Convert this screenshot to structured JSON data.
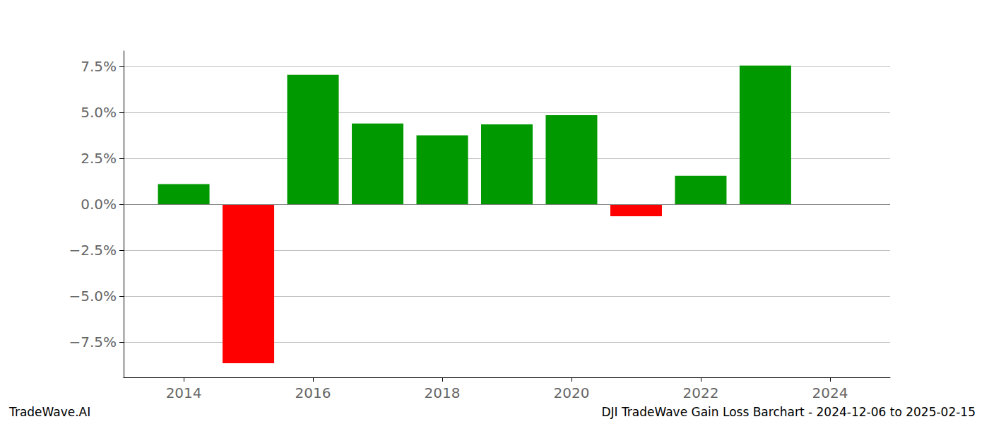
{
  "chart_data": {
    "type": "bar",
    "title": "DJI TradeWave Gain Loss Barchart - 2024-12-06 to 2025-02-15",
    "source": "TradeWave.AI",
    "x": [
      2014,
      2015,
      2016,
      2017,
      2018,
      2019,
      2020,
      2021,
      2022,
      2023
    ],
    "values": [
      1.1,
      -8.65,
      7.05,
      4.4,
      3.75,
      4.35,
      4.85,
      -0.65,
      1.55,
      7.55
    ],
    "colors": [
      "#009900",
      "#ff0000",
      "#009900",
      "#009900",
      "#009900",
      "#009900",
      "#009900",
      "#ff0000",
      "#009900",
      "#009900"
    ],
    "xlim": [
      2013.07,
      2024.93
    ],
    "xticks": [
      2014,
      2016,
      2018,
      2020,
      2022,
      2024
    ],
    "ylim": [
      -9.42,
      8.35
    ],
    "yticks": [
      {
        "value": -7.5,
        "label": "−7.5%"
      },
      {
        "value": -5,
        "label": "−5.0%"
      },
      {
        "value": -2.5,
        "label": "−2.5%"
      },
      {
        "value": 0,
        "label": "0.0%"
      },
      {
        "value": 2.5,
        "label": "2.5%"
      },
      {
        "value": 5,
        "label": "5.0%"
      },
      {
        "value": 7.5,
        "label": "7.5%"
      }
    ],
    "grid": true
  }
}
